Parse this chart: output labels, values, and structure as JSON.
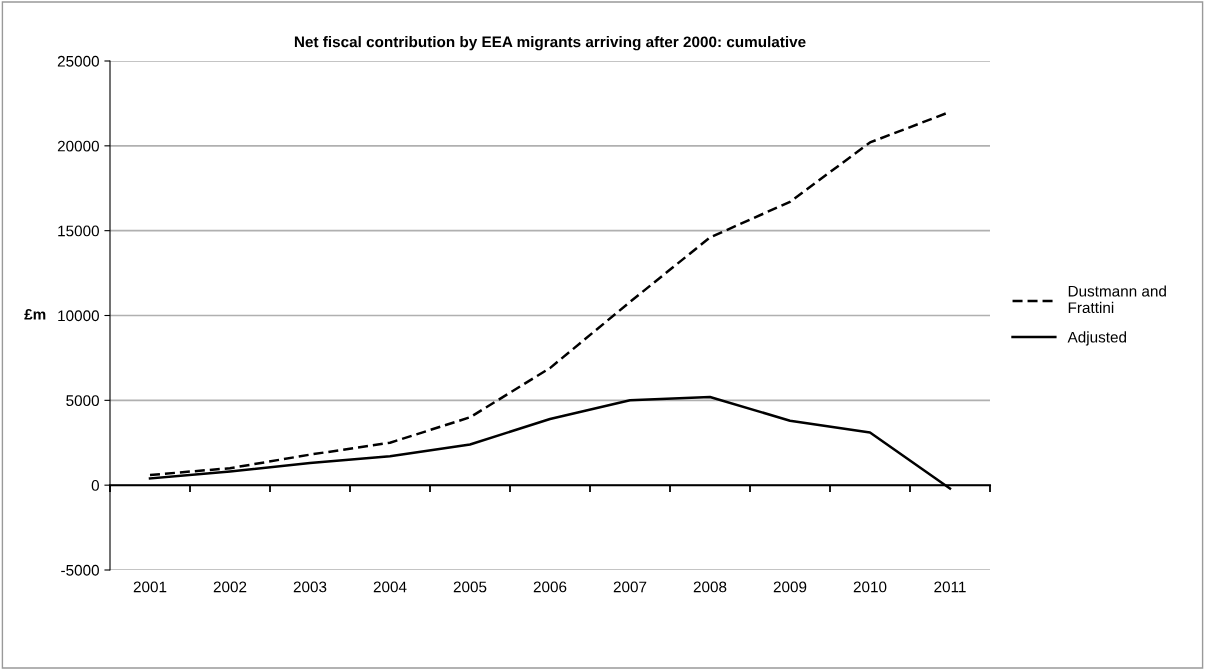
{
  "chart_data": {
    "type": "line",
    "title": "Net fiscal contribution by EEA migrants arriving after 2000: cumulative",
    "ylabel": "£m",
    "categories": [
      "2001",
      "2002",
      "2003",
      "2004",
      "2005",
      "2006",
      "2007",
      "2008",
      "2009",
      "2010",
      "2011"
    ],
    "series": [
      {
        "name": "Dustmann and Frattini",
        "color": "#000000",
        "line_style": "dashed",
        "values": [
          600,
          1000,
          1800,
          2500,
          4000,
          6900,
          10800,
          14600,
          16700,
          20200,
          22000
        ]
      },
      {
        "name": "Adjusted",
        "color": "#000000",
        "line_style": "solid",
        "values": [
          400,
          800,
          1300,
          1700,
          2400,
          3900,
          5000,
          5200,
          3800,
          3100,
          -200
        ]
      }
    ],
    "ylim": [
      -5000,
      25000
    ],
    "yticks": [
      -5000,
      0,
      5000,
      10000,
      15000,
      20000,
      25000
    ],
    "grid": "y",
    "legend": "right",
    "marker": "none"
  }
}
